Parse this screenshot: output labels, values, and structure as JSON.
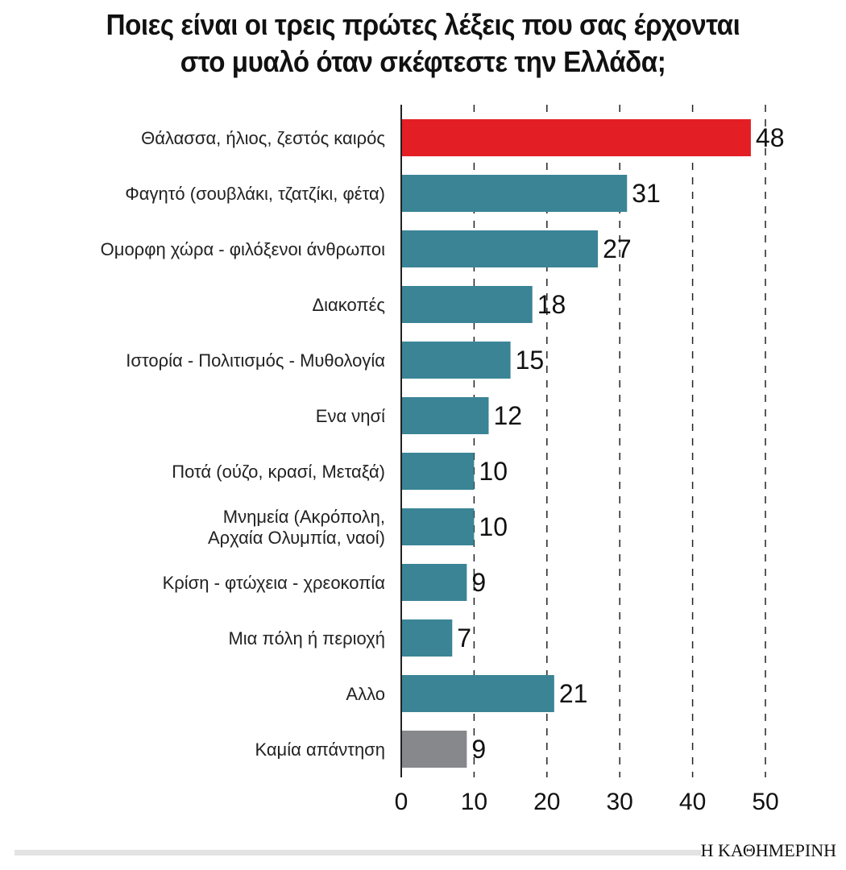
{
  "chart_data": {
    "type": "bar",
    "orientation": "horizontal",
    "title": "Ποιες είναι οι τρεις πρώτες λέξεις που σας έρχονται στο μυαλό όταν σκέφτεστε την Ελλάδα;",
    "title_lines": [
      "Ποιες είναι οι τρεις πρώτες λέξεις που σας έρχονται",
      "στο μυαλό όταν σκέφτεστε την Ελλάδα;"
    ],
    "categories": [
      [
        "Θάλασσα, ήλιος, ζεστός καιρός"
      ],
      [
        "Φαγητό (σουβλάκι, τζατζίκι, φέτα)"
      ],
      [
        "Ομορφη χώρα - φιλόξενοι άνθρωποι"
      ],
      [
        "Διακοπές"
      ],
      [
        "Ιστορία - Πολιτισμός - Μυθολογία"
      ],
      [
        "Ενα νησί"
      ],
      [
        "Ποτά (ούζο, κρασί, Μεταξά)"
      ],
      [
        "Μνημεία (Ακρόπολη,",
        "Αρχαία Ολυμπία, ναοί)"
      ],
      [
        "Κρίση - φτώχεια - χρεοκοπία"
      ],
      [
        "Μια πόλη ή περιοχή"
      ],
      [
        "Αλλο"
      ],
      [
        "Καμία απάντηση"
      ]
    ],
    "values": [
      48,
      31,
      27,
      18,
      15,
      12,
      10,
      10,
      9,
      7,
      21,
      9
    ],
    "bar_colors": [
      "#e31e24",
      "#3a8496",
      "#3a8496",
      "#3a8496",
      "#3a8496",
      "#3a8496",
      "#3a8496",
      "#3a8496",
      "#3a8496",
      "#3a8496",
      "#3a8496",
      "#87888c"
    ],
    "xlim": [
      0,
      50
    ],
    "xticks": [
      "0",
      "10",
      "20",
      "30",
      "40",
      "50"
    ],
    "grid": "dashed vertical",
    "xlabel": "",
    "ylabel": ""
  },
  "source_logo": "Η ΚΑΘΗΜΕΡΙΝΗ"
}
